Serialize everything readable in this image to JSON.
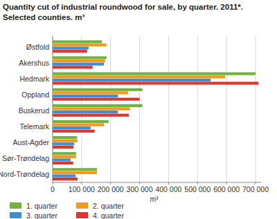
{
  "chart_data": {
    "type": "bar",
    "orientation": "horizontal",
    "title": "Quantity cut of industrial roundwood for sale, by quarter. 2011*.",
    "subtitle": "Selected counties. m³",
    "x_label": "m³",
    "categories": [
      "Østfold",
      "Akershus",
      "Hedmark",
      "Oppland",
      "Buskerud",
      "Telemark",
      "Aust-Agder",
      "Sør-Trøndelag",
      "Nord-Trøndelag"
    ],
    "series": [
      {
        "name": "1. quarter",
        "color": "#72b340",
        "values": [
          170000,
          186000,
          700000,
          310000,
          310000,
          193000,
          84000,
          81000,
          153000
        ]
      },
      {
        "name": "2. quarter",
        "color": "#f39a1e",
        "values": [
          186000,
          181000,
          595000,
          260000,
          267000,
          177000,
          86000,
          81000,
          153000
        ]
      },
      {
        "name": "3. quarter",
        "color": "#3b8fd2",
        "values": [
          124000,
          177000,
          545000,
          225000,
          225000,
          131000,
          74000,
          62000,
          79000
        ]
      },
      {
        "name": "4. quarter",
        "color": "#e2342b",
        "values": [
          119000,
          138000,
          710000,
          300000,
          263000,
          145000,
          72000,
          71000,
          86000
        ]
      }
    ],
    "xlim": [
      0,
      720000
    ],
    "xticks": [
      0,
      {
        "value": 100000,
        "label": "100 000"
      },
      {
        "value": 200000,
        "label": "200 000"
      },
      {
        "value": 300000,
        "label": "300 000"
      },
      {
        "value": 400000,
        "label": "400 000"
      },
      {
        "value": 500000,
        "label": "500 000"
      },
      {
        "value": 600000,
        "label": "600 000"
      },
      {
        "value": 700000,
        "label": "700 000"
      }
    ],
    "grid": true,
    "legend": "bottom"
  }
}
